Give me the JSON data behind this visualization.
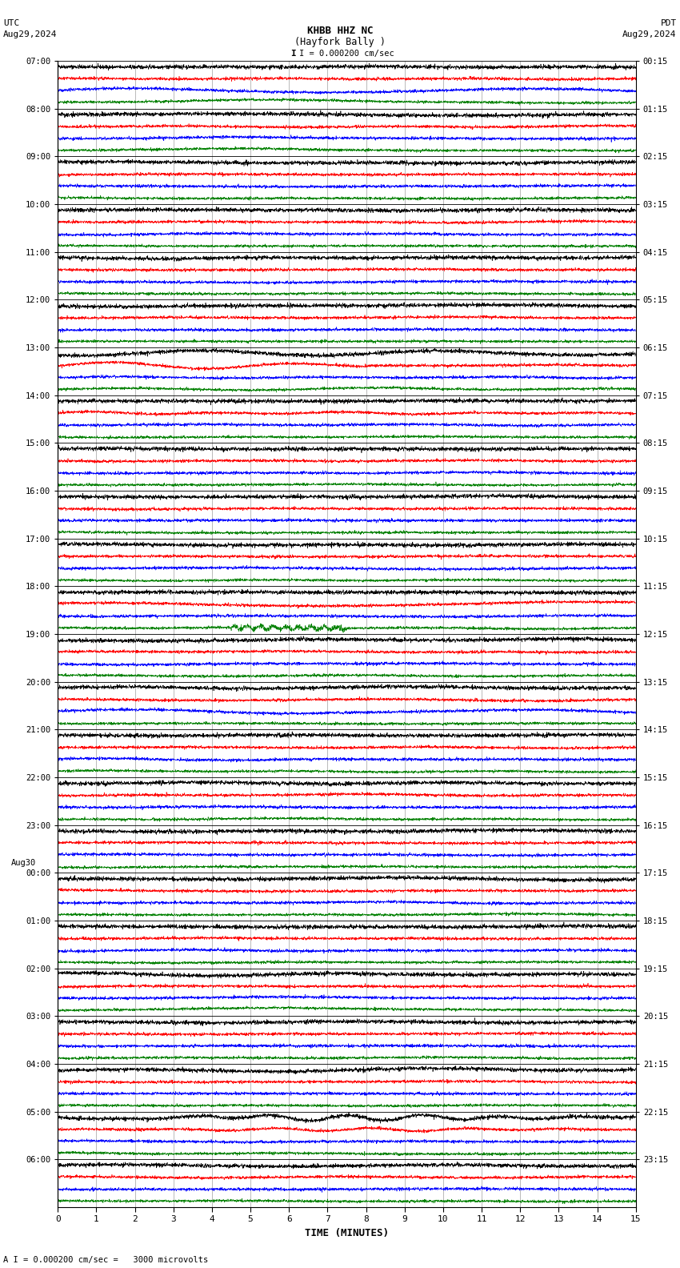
{
  "title_line1": "KHBB HHZ NC",
  "title_line2": "(Hayfork Bally )",
  "scale_text": "I = 0.000200 cm/sec",
  "left_label_top": "UTC",
  "left_label_date": "Aug29,2024",
  "right_label_top": "PDT",
  "right_label_date": "Aug29,2024",
  "bottom_label": "TIME (MINUTES)",
  "bottom_note": "A I = 0.000200 cm/sec =   3000 microvolts",
  "xlabel_ticks": [
    0,
    1,
    2,
    3,
    4,
    5,
    6,
    7,
    8,
    9,
    10,
    11,
    12,
    13,
    14,
    15
  ],
  "utc_times": [
    "07:00",
    "08:00",
    "09:00",
    "10:00",
    "11:00",
    "12:00",
    "13:00",
    "14:00",
    "15:00",
    "16:00",
    "17:00",
    "18:00",
    "19:00",
    "20:00",
    "21:00",
    "22:00",
    "23:00",
    "00:00",
    "01:00",
    "02:00",
    "03:00",
    "04:00",
    "05:00",
    "06:00"
  ],
  "pdt_times": [
    "00:15",
    "01:15",
    "02:15",
    "03:15",
    "04:15",
    "05:15",
    "06:15",
    "07:15",
    "08:15",
    "09:15",
    "10:15",
    "11:15",
    "12:15",
    "13:15",
    "14:15",
    "15:15",
    "16:15",
    "17:15",
    "18:15",
    "19:15",
    "20:15",
    "21:15",
    "22:15",
    "23:15"
  ],
  "aug30_row": 17,
  "n_rows": 24,
  "traces_per_row": 4,
  "colors": [
    "black",
    "red",
    "blue",
    "green"
  ],
  "fig_width": 8.5,
  "fig_height": 15.84,
  "bg_color": "white",
  "line_width": 0.45,
  "trace_amp": [
    0.3,
    0.22,
    0.22,
    0.2
  ],
  "n_points": 3000
}
